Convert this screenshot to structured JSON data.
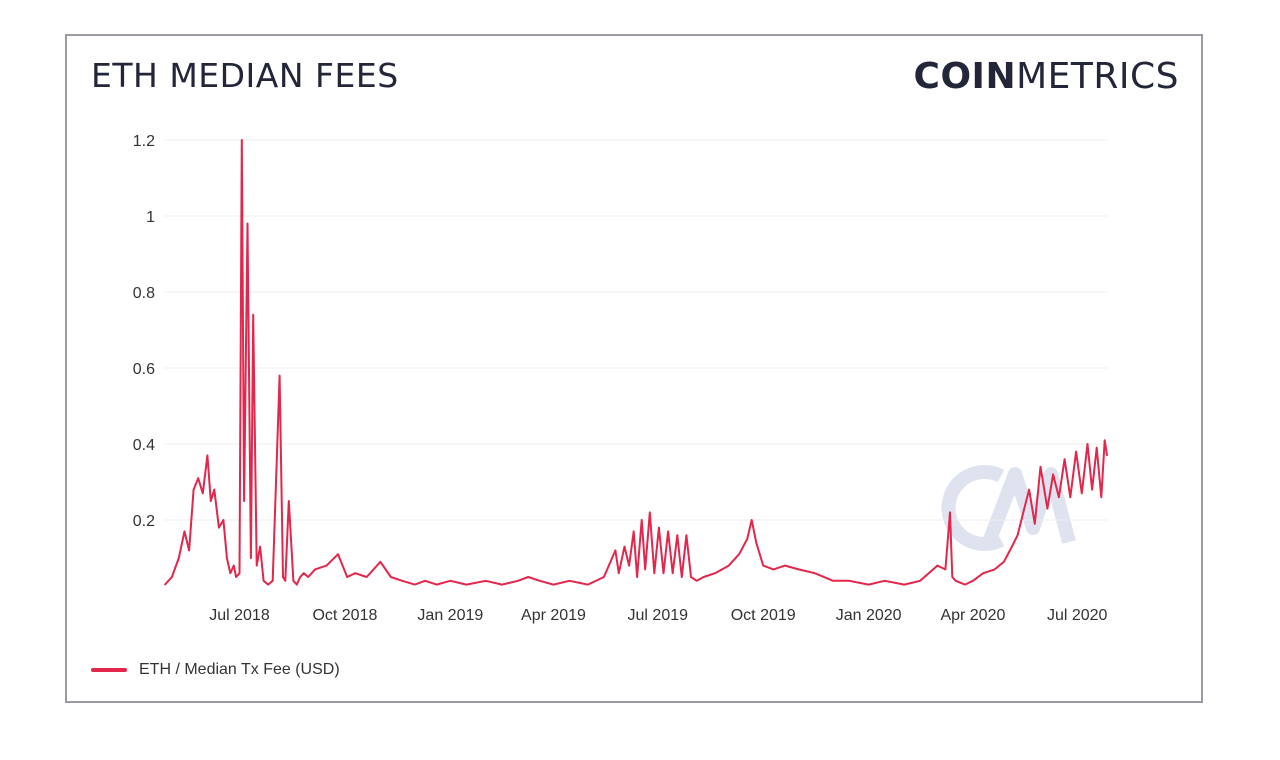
{
  "header": {
    "title": "ETH MEDIAN FEES",
    "brand_bold": "COIN",
    "brand_light": "METRICS"
  },
  "colors": {
    "series": "#e3264b",
    "grid": "#eeeeee",
    "watermark": "#dfe3f0"
  },
  "legend": {
    "label": "ETH / Median Tx Fee (USD)"
  },
  "watermark_icon": "coinmetrics-logo-icon",
  "chart_data": {
    "type": "line",
    "title": "ETH MEDIAN FEES",
    "xlabel": "",
    "ylabel": "",
    "xlim": [
      "2018-04-27",
      "2020-07-27"
    ],
    "ylim": [
      0,
      1.2
    ],
    "yticks": [
      0.2,
      0.4,
      0.6,
      0.8,
      1,
      1.2
    ],
    "ytick_labels": [
      "0.2",
      "0.4",
      "0.6",
      "0.8",
      "1",
      "1.2"
    ],
    "xticks": [
      "2018-07-01",
      "2018-10-01",
      "2019-01-01",
      "2019-04-01",
      "2019-07-01",
      "2019-10-01",
      "2020-01-01",
      "2020-04-01",
      "2020-07-01"
    ],
    "xtick_labels": [
      "Jul 2018",
      "Oct 2018",
      "Jan 2019",
      "Apr 2019",
      "Jul 2019",
      "Oct 2019",
      "Jan 2020",
      "Apr 2020",
      "Jul 2020"
    ],
    "grid": true,
    "legend_position": "bottom-left",
    "series": [
      {
        "name": "ETH / Median Tx Fee (USD)",
        "x": [
          "2018-04-27",
          "2018-05-03",
          "2018-05-09",
          "2018-05-14",
          "2018-05-18",
          "2018-05-22",
          "2018-05-26",
          "2018-05-30",
          "2018-06-03",
          "2018-06-06",
          "2018-06-09",
          "2018-06-13",
          "2018-06-17",
          "2018-06-20",
          "2018-06-23",
          "2018-06-26",
          "2018-06-28",
          "2018-07-01",
          "2018-07-03",
          "2018-07-05",
          "2018-07-08",
          "2018-07-11",
          "2018-07-13",
          "2018-07-16",
          "2018-07-19",
          "2018-07-22",
          "2018-07-26",
          "2018-07-30",
          "2018-08-05",
          "2018-08-08",
          "2018-08-10",
          "2018-08-13",
          "2018-08-17",
          "2018-08-20",
          "2018-08-23",
          "2018-08-26",
          "2018-08-30",
          "2018-09-05",
          "2018-09-15",
          "2018-09-25",
          "2018-10-03",
          "2018-10-10",
          "2018-10-20",
          "2018-11-01",
          "2018-11-10",
          "2018-11-20",
          "2018-12-01",
          "2018-12-10",
          "2018-12-20",
          "2019-01-01",
          "2019-01-15",
          "2019-02-01",
          "2019-02-15",
          "2019-03-01",
          "2019-03-10",
          "2019-03-20",
          "2019-04-01",
          "2019-04-15",
          "2019-05-01",
          "2019-05-15",
          "2019-05-25",
          "2019-05-28",
          "2019-06-02",
          "2019-06-06",
          "2019-06-10",
          "2019-06-13",
          "2019-06-17",
          "2019-06-20",
          "2019-06-24",
          "2019-06-28",
          "2019-07-02",
          "2019-07-06",
          "2019-07-10",
          "2019-07-14",
          "2019-07-18",
          "2019-07-22",
          "2019-07-26",
          "2019-07-30",
          "2019-08-04",
          "2019-08-10",
          "2019-08-20",
          "2019-09-01",
          "2019-09-10",
          "2019-09-17",
          "2019-09-21",
          "2019-09-25",
          "2019-10-01",
          "2019-10-10",
          "2019-10-20",
          "2019-11-01",
          "2019-11-15",
          "2019-12-01",
          "2019-12-15",
          "2020-01-01",
          "2020-01-15",
          "2020-02-01",
          "2020-02-15",
          "2020-03-01",
          "2020-03-08",
          "2020-03-12",
          "2020-03-14",
          "2020-03-17",
          "2020-03-25",
          "2020-04-01",
          "2020-04-10",
          "2020-04-20",
          "2020-04-28",
          "2020-05-05",
          "2020-05-10",
          "2020-05-15",
          "2020-05-20",
          "2020-05-25",
          "2020-05-30",
          "2020-06-05",
          "2020-06-10",
          "2020-06-15",
          "2020-06-20",
          "2020-06-25",
          "2020-06-30",
          "2020-07-05",
          "2020-07-10",
          "2020-07-14",
          "2020-07-18",
          "2020-07-22",
          "2020-07-25",
          "2020-07-27"
        ],
        "values": [
          0.03,
          0.05,
          0.1,
          0.17,
          0.12,
          0.28,
          0.31,
          0.27,
          0.37,
          0.25,
          0.28,
          0.18,
          0.2,
          0.1,
          0.06,
          0.08,
          0.05,
          0.06,
          1.2,
          0.25,
          0.98,
          0.1,
          0.74,
          0.08,
          0.13,
          0.04,
          0.03,
          0.04,
          0.58,
          0.05,
          0.04,
          0.25,
          0.04,
          0.03,
          0.05,
          0.06,
          0.05,
          0.07,
          0.08,
          0.11,
          0.05,
          0.06,
          0.05,
          0.09,
          0.05,
          0.04,
          0.03,
          0.04,
          0.03,
          0.04,
          0.03,
          0.04,
          0.03,
          0.04,
          0.05,
          0.04,
          0.03,
          0.04,
          0.03,
          0.05,
          0.12,
          0.06,
          0.13,
          0.08,
          0.17,
          0.05,
          0.2,
          0.07,
          0.22,
          0.06,
          0.18,
          0.06,
          0.17,
          0.06,
          0.16,
          0.05,
          0.16,
          0.05,
          0.04,
          0.05,
          0.06,
          0.08,
          0.11,
          0.15,
          0.2,
          0.14,
          0.08,
          0.07,
          0.08,
          0.07,
          0.06,
          0.04,
          0.04,
          0.03,
          0.04,
          0.03,
          0.04,
          0.08,
          0.07,
          0.22,
          0.05,
          0.04,
          0.03,
          0.04,
          0.06,
          0.07,
          0.09,
          0.13,
          0.16,
          0.22,
          0.28,
          0.19,
          0.34,
          0.23,
          0.32,
          0.26,
          0.36,
          0.26,
          0.38,
          0.27,
          0.4,
          0.28,
          0.39,
          0.26,
          0.41,
          0.37
        ]
      }
    ]
  }
}
